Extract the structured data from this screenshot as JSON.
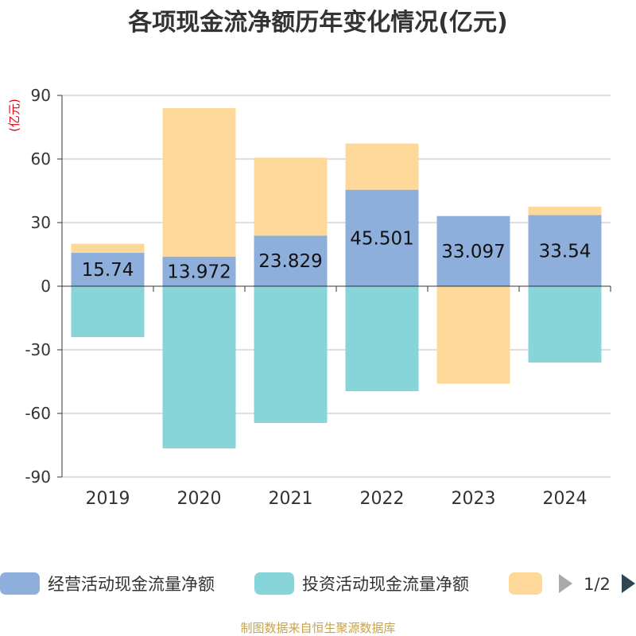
{
  "chart_data": {
    "type": "bar",
    "stacked": true,
    "title": "各项现金流净额历年变化情况(亿元)",
    "unit_label": "(亿元)",
    "categories": [
      "2019",
      "2020",
      "2021",
      "2022",
      "2023",
      "2024"
    ],
    "ylim": [
      -90,
      90
    ],
    "yticks": [
      90,
      60,
      30,
      0,
      -30,
      -60,
      -90
    ],
    "ytick_labels": [
      "90",
      "60",
      "30",
      "0",
      "-30",
      "-60",
      "-90"
    ],
    "grid": true,
    "series": [
      {
        "name": "经营活动现金流量净额",
        "color": "#8eaedb",
        "values": [
          15.74,
          13.972,
          23.829,
          45.501,
          33.097,
          33.54
        ],
        "labels": [
          "15.74",
          "13.972",
          "23.829",
          "45.501",
          "33.097",
          "33.54"
        ]
      },
      {
        "name": "投资活动现金流量净额",
        "color": "#87d5d8",
        "values": [
          -24,
          -76.5,
          -64.5,
          -49.5,
          0,
          -36
        ]
      },
      {
        "name": "",
        "color": "#fed898",
        "values": [
          4.3,
          70,
          36.8,
          21.8,
          -46,
          4
        ]
      }
    ],
    "legend": {
      "position": "bottom",
      "page": "1/2"
    },
    "source": "制图数据来自恒生聚源数据库"
  }
}
